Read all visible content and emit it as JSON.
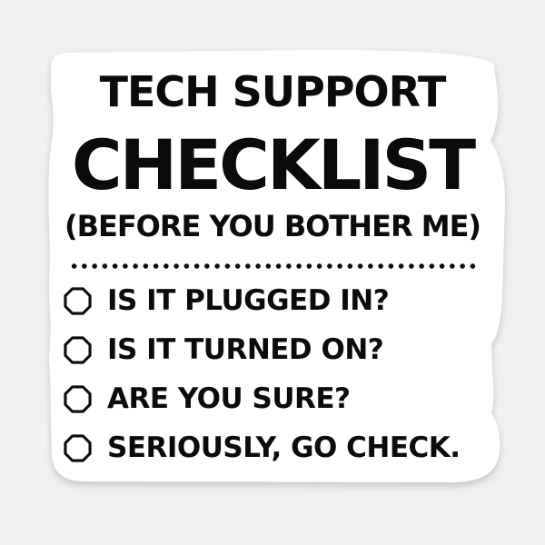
{
  "sticker": {
    "title_line1": "TECH SUPPORT",
    "title_line2": "CHECKLIST",
    "subtitle": "(BEFORE YOU BOTHER ME)",
    "checklist": [
      {
        "label": "IS IT PLUGGED IN?",
        "checked": false
      },
      {
        "label": "IS IT TURNED ON?",
        "checked": false
      },
      {
        "label": "ARE YOU SURE?",
        "checked": false
      },
      {
        "label": "SERIOUSLY, GO CHECK.",
        "checked": false
      }
    ],
    "icons": {
      "checkbox": "octagon-checkbox-icon",
      "divider": "dotted-divider"
    },
    "colors": {
      "background": "#f1f1f1",
      "sticker_fill": "#ffffff",
      "text": "#0b0b0b",
      "shadow": "#d0d0d0"
    }
  }
}
